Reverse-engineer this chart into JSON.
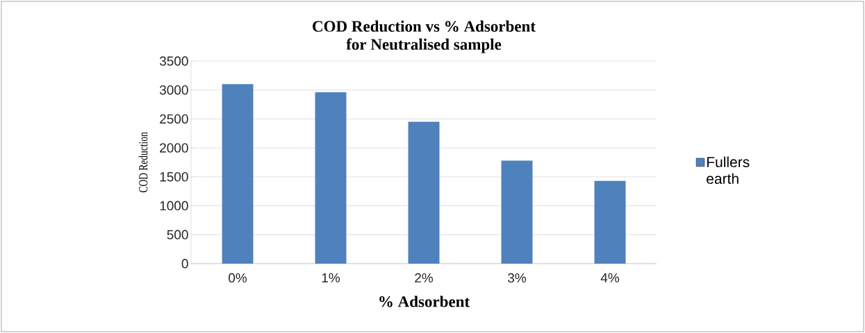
{
  "chart_data": {
    "type": "bar",
    "title": "COD Reduction vs % Adsorbent\nfor Neutralised sample",
    "xlabel": "% Adsorbent",
    "ylabel": "COD Reduction",
    "categories": [
      "0%",
      "1%",
      "2%",
      "3%",
      "4%"
    ],
    "series": [
      {
        "name": "Fullers earth",
        "color": "#4f81bd",
        "values": [
          3100,
          2960,
          2450,
          1780,
          1430
        ]
      }
    ],
    "ylim": [
      0,
      3500
    ],
    "yticks": [
      0,
      500,
      1000,
      1500,
      2000,
      2500,
      3000,
      3500
    ],
    "grid": "y",
    "legend": "right"
  }
}
